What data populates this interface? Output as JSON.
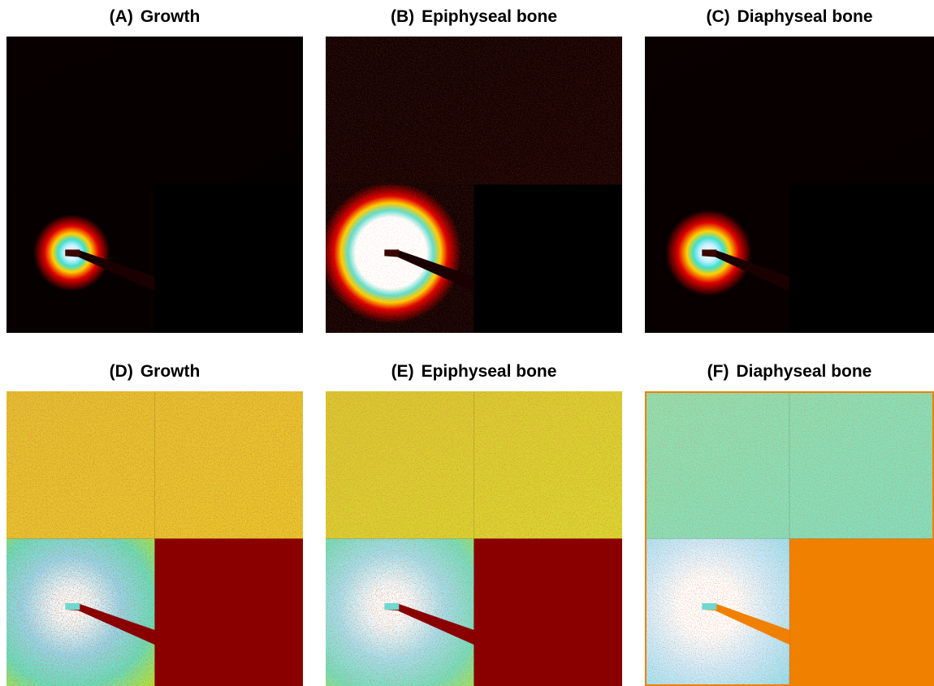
{
  "panels": [
    {
      "letter": "(A)",
      "title": "Growth"
    },
    {
      "letter": "(B)",
      "title": "Epiphyseal bone"
    },
    {
      "letter": "(C)",
      "title": "Diaphyseal bone"
    },
    {
      "letter": "(D)",
      "title": "Growth"
    },
    {
      "letter": "(E)",
      "title": "Epiphyseal bone"
    },
    {
      "letter": "(F)",
      "title": "Diaphyseal bone"
    }
  ]
}
